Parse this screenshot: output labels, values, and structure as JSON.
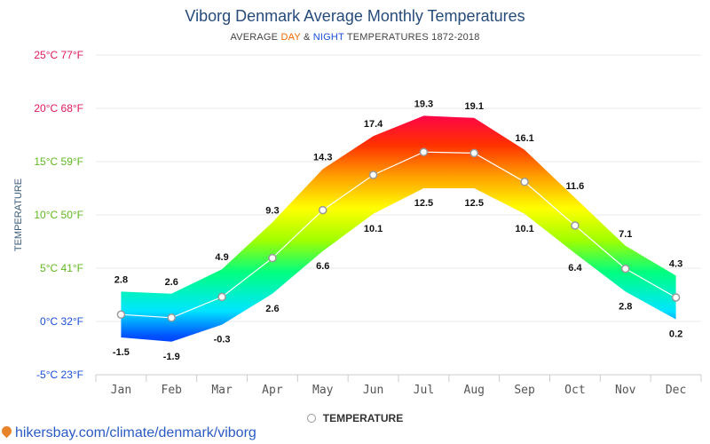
{
  "title": "Viborg Denmark Average Monthly Temperatures",
  "subtitle": {
    "prefix": "AVERAGE ",
    "day": "DAY",
    "amp": " & ",
    "night": "NIGHT",
    "suffix": " TEMPERATURES 1872-2018"
  },
  "legend": {
    "label": "TEMPERATURE"
  },
  "source": "hikersbay.com/climate/denmark/viborg",
  "chart_data": {
    "type": "area",
    "ylabel": "TEMPERATURE",
    "ylim": [
      -5,
      25
    ],
    "y_ticks": [
      {
        "value": 25,
        "label": "25°C 77°F",
        "color": "#e0195a"
      },
      {
        "value": 20,
        "label": "20°C 68°F",
        "color": "#e0195a"
      },
      {
        "value": 15,
        "label": "15°C 59°F",
        "color": "#5fb820"
      },
      {
        "value": 10,
        "label": "10°C 50°F",
        "color": "#5fb820"
      },
      {
        "value": 5,
        "label": "5°C 41°F",
        "color": "#5fb820"
      },
      {
        "value": 0,
        "label": "0°C 32°F",
        "color": "#1a4fd8"
      },
      {
        "value": -5,
        "label": "-5°C 23°F",
        "color": "#1a4fd8"
      }
    ],
    "categories": [
      "Jan",
      "Feb",
      "Mar",
      "Apr",
      "May",
      "Jun",
      "Jul",
      "Aug",
      "Sep",
      "Oct",
      "Nov",
      "Dec"
    ],
    "series": [
      {
        "name": "DAY",
        "values": [
          2.8,
          2.6,
          4.9,
          9.3,
          14.3,
          17.4,
          19.3,
          19.1,
          16.1,
          11.6,
          7.1,
          4.3
        ]
      },
      {
        "name": "NIGHT",
        "values": [
          -1.5,
          -1.9,
          -0.3,
          2.6,
          6.6,
          10.1,
          12.5,
          12.5,
          10.1,
          6.4,
          2.8,
          0.2
        ]
      },
      {
        "name": "TEMPERATURE",
        "values": [
          0.65,
          0.35,
          2.3,
          5.95,
          10.45,
          13.75,
          15.9,
          15.8,
          13.1,
          9.0,
          4.95,
          2.25
        ]
      }
    ],
    "grid": true,
    "legend_position": "bottom"
  }
}
